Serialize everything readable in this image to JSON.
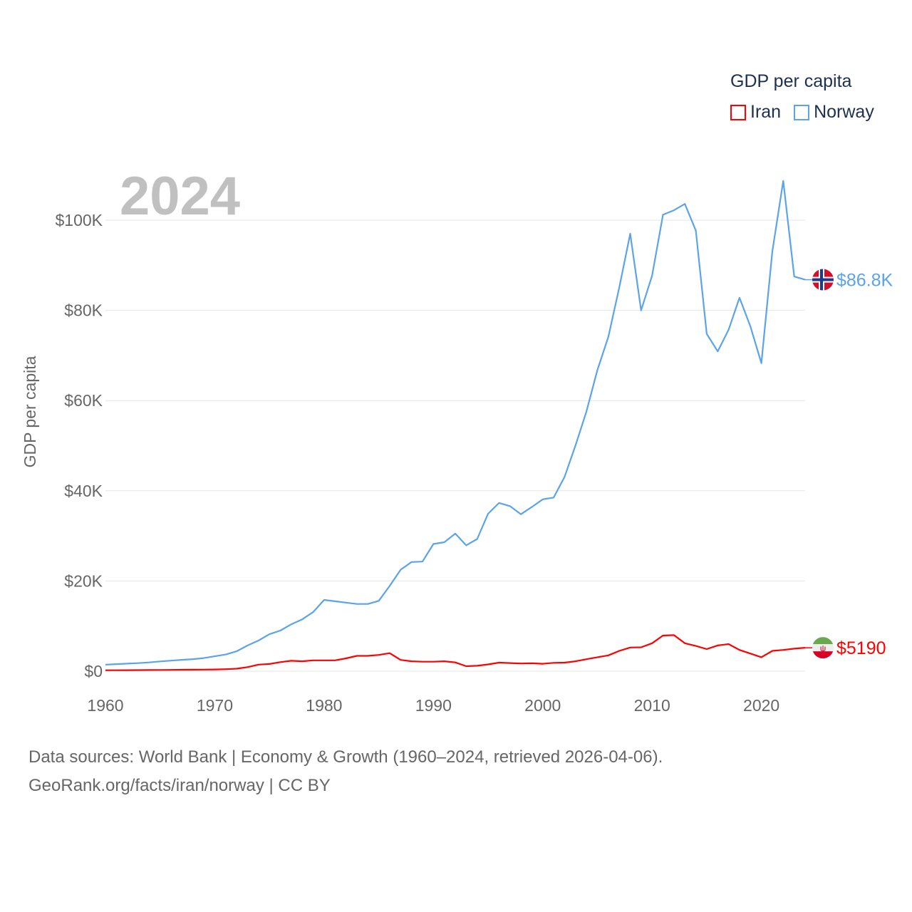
{
  "chart_data": {
    "type": "line",
    "title": "GDP per capita",
    "year_label": "2024",
    "ylabel": "GDP per capita",
    "xlabel": "",
    "xlim": [
      1960,
      2024
    ],
    "ylim": [
      0,
      110000
    ],
    "x_ticks": [
      1960,
      1970,
      1980,
      1990,
      2000,
      2010,
      2020
    ],
    "x_tick_labels": [
      "1960",
      "1970",
      "1980",
      "1990",
      "2000",
      "2010",
      "2020"
    ],
    "y_ticks": [
      0,
      20000,
      40000,
      60000,
      80000,
      100000
    ],
    "y_tick_labels": [
      "$0",
      "$20K",
      "$40K",
      "$60K",
      "$80K",
      "$100K"
    ],
    "grid": true,
    "legend_position": "top-right",
    "series": [
      {
        "name": "Iran",
        "color": "#ff0000",
        "end_label": "$5190",
        "flag": "iran-flag",
        "values": [
          200,
          210,
          220,
          230,
          250,
          270,
          290,
          310,
          330,
          350,
          380,
          440,
          550,
          900,
          1450,
          1600,
          2000,
          2300,
          2200,
          2400,
          2400,
          2400,
          2850,
          3400,
          3400,
          3600,
          4000,
          2500,
          2200,
          2100,
          2100,
          2200,
          1950,
          1100,
          1200,
          1500,
          1900,
          1800,
          1700,
          1750,
          1650,
          1850,
          1900,
          2200,
          2650,
          3100,
          3500,
          4500,
          5250,
          5300,
          6200,
          7900,
          8000,
          6200,
          5600,
          4900,
          5700,
          6000,
          4700,
          3900,
          3100,
          4500,
          4700,
          5000,
          5190
        ]
      },
      {
        "name": "Norway",
        "color": "#5ba4e8",
        "end_label": "$86.8K",
        "flag": "norway-flag",
        "values": [
          1440,
          1560,
          1670,
          1790,
          1950,
          2170,
          2340,
          2510,
          2670,
          2900,
          3300,
          3700,
          4400,
          5700,
          6800,
          8200,
          9000,
          10400,
          11500,
          13100,
          15800,
          15500,
          15200,
          14900,
          14900,
          15600,
          18900,
          22500,
          24200,
          24300,
          28200,
          28600,
          30500,
          27900,
          29300,
          34900,
          37300,
          36600,
          34800,
          36400,
          38100,
          38500,
          43100,
          50100,
          57600,
          66800,
          74100,
          85100,
          97000,
          80000,
          87700,
          101200,
          102200,
          103600,
          97700,
          74800,
          70900,
          75700,
          82800,
          76400,
          68300,
          93100,
          108700,
          87500,
          86800
        ]
      }
    ]
  },
  "legend": {
    "title": "GDP per capita",
    "items": [
      "Iran",
      "Norway"
    ]
  },
  "footer": {
    "line1": "Data sources: World Bank | Economy & Growth (1960–2024, retrieved 2026-04-06).",
    "line2": "GeoRank.org/facts/iran/norway | CC BY"
  }
}
